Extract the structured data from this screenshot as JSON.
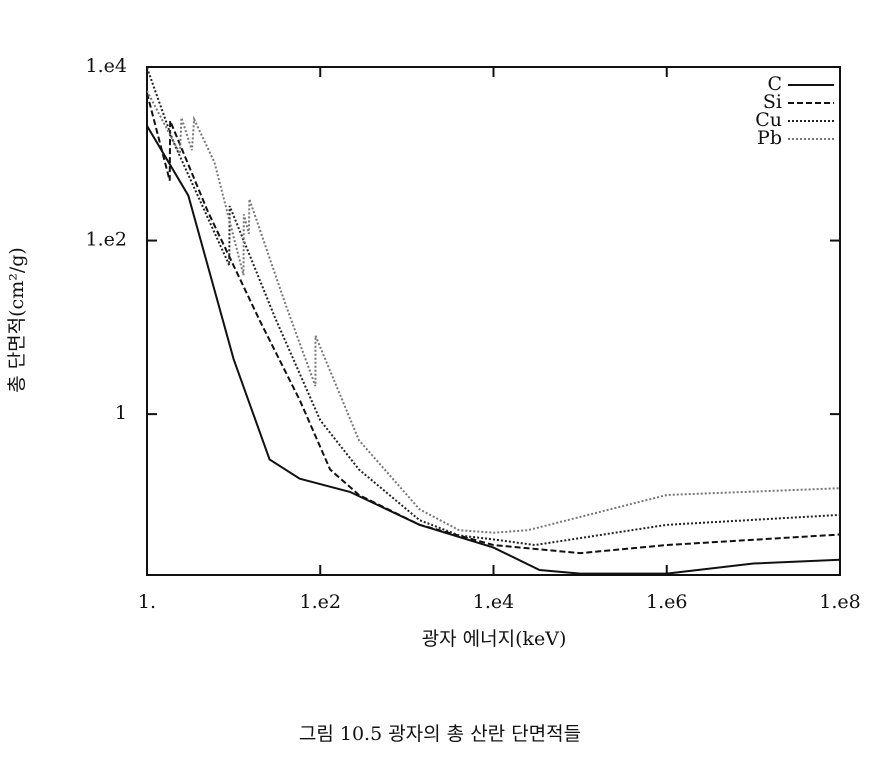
{
  "chart_data": {
    "type": "line",
    "caption": "그림 10.5 광자의 총 산란 단면적들",
    "xlabel": "광자 에너지(keV)",
    "ylabel": "총 단면적(cm²/g)",
    "xscale": "log",
    "yscale": "log",
    "xlim": [
      1,
      100000000
    ],
    "ylim": [
      0.014,
      10000
    ],
    "xticks": [
      {
        "value": 1,
        "label": "1."
      },
      {
        "value": 100,
        "label": "1.e2"
      },
      {
        "value": 10000,
        "label": "1.e4"
      },
      {
        "value": 1000000,
        "label": "1.e6"
      },
      {
        "value": 100000000,
        "label": "1.e8"
      }
    ],
    "yticks": [
      1,
      {
        "value": 100,
        "label": "1.e2"
      },
      {
        "value": 10000,
        "label": "1.e4"
      }
    ],
    "legend_position": "upper right",
    "series": [
      {
        "name": "C",
        "color": "#111111",
        "dash": "solid",
        "x": [
          1,
          3,
          10,
          26,
          58,
          220,
          1400,
          10000,
          34000,
          100000,
          1000000,
          10000000,
          100000000
        ],
        "values": [
          2100,
          330,
          4.3,
          0.3,
          0.18,
          0.127,
          0.053,
          0.029,
          0.016,
          0.0145,
          0.0145,
          0.019,
          0.021
        ]
      },
      {
        "name": "Si",
        "color": "#111111",
        "dash": "dashed",
        "x": [
          1,
          1.83,
          1.85,
          5,
          20,
          58,
          130,
          280,
          1400,
          10000,
          100000,
          1000000,
          100000000
        ],
        "values": [
          5000,
          490,
          2400,
          220,
          12,
          1.45,
          0.23,
          0.117,
          0.053,
          0.031,
          0.025,
          0.031,
          0.041
        ]
      },
      {
        "name": "Cu",
        "color": "#222222",
        "dash": "dotted",
        "x": [
          1,
          2,
          8.9,
          9.0,
          30,
          100,
          280,
          1400,
          4000,
          10000,
          30000,
          1000000,
          100000000
        ],
        "values": [
          9800,
          1400,
          52,
          250,
          13,
          0.85,
          0.23,
          0.06,
          0.04,
          0.036,
          0.031,
          0.053,
          0.069
        ]
      },
      {
        "name": "Pb",
        "color": "#777777",
        "dash": "dotted",
        "x": [
          1,
          2.4,
          2.5,
          3.3,
          3.5,
          6,
          13,
          13.1,
          15,
          15.2,
          40,
          88,
          88.1,
          280,
          1400,
          4000,
          10000,
          25000,
          1000000,
          100000000
        ],
        "values": [
          5300,
          1000,
          2600,
          1100,
          2500,
          800,
          40,
          200,
          120,
          300,
          18,
          2.1,
          8,
          0.5,
          0.08,
          0.046,
          0.043,
          0.046,
          0.117,
          0.14
        ]
      }
    ]
  }
}
